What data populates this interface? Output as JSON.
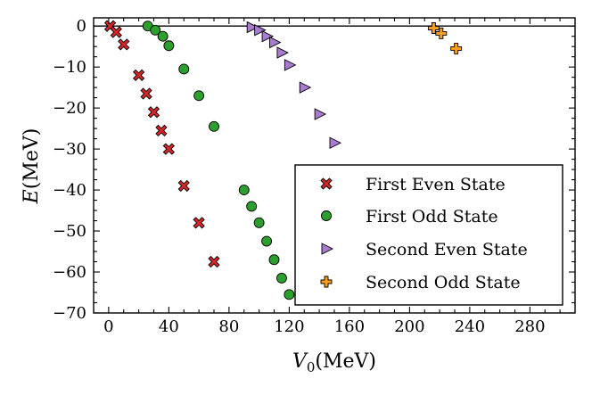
{
  "chart_data": {
    "type": "scatter",
    "title": "",
    "xlabel": "V₀(MeV)",
    "ylabel": "E(MeV)",
    "xlim": [
      -10,
      310
    ],
    "ylim": [
      -70,
      2
    ],
    "x_ticks": [
      0,
      40,
      80,
      120,
      160,
      200,
      240,
      280
    ],
    "y_ticks": [
      0,
      -10,
      -20,
      -30,
      -40,
      -50,
      -60,
      -70
    ],
    "x_tick_labels": [
      "0",
      "40",
      "80",
      "120",
      "160",
      "200",
      "240",
      "280"
    ],
    "y_tick_labels": [
      "0",
      "−10",
      "−20",
      "−30",
      "−40",
      "−50",
      "−60",
      "−70"
    ],
    "zero_line": true,
    "legend_position": "center-right",
    "series": [
      {
        "name": "First Even State",
        "marker": "x",
        "color": "#d62728",
        "points": [
          [
            1,
            0
          ],
          [
            5,
            -1.5
          ],
          [
            10,
            -4.5
          ],
          [
            20,
            -12
          ],
          [
            25,
            -16.5
          ],
          [
            30,
            -21
          ],
          [
            35,
            -25.5
          ],
          [
            40,
            -30
          ],
          [
            50,
            -39
          ],
          [
            60,
            -48
          ],
          [
            70,
            -57.5
          ]
        ]
      },
      {
        "name": "First Odd State",
        "marker": "circle",
        "color": "#2ca02c",
        "points": [
          [
            26,
            0
          ],
          [
            31,
            -1
          ],
          [
            36,
            -2.5
          ],
          [
            40,
            -4.8
          ],
          [
            50,
            -10.5
          ],
          [
            60,
            -17
          ],
          [
            70,
            -24.5
          ],
          [
            90,
            -40
          ],
          [
            95,
            -44
          ],
          [
            100,
            -48
          ],
          [
            105,
            -52.5
          ],
          [
            110,
            -57
          ],
          [
            115,
            -61.5
          ],
          [
            120,
            -65.5
          ]
        ]
      },
      {
        "name": "Second Even State",
        "marker": "triangle-right",
        "color": "#a97bd1",
        "points": [
          [
            95,
            -0.3
          ],
          [
            100,
            -1
          ],
          [
            105,
            -2.5
          ],
          [
            110,
            -4
          ],
          [
            115,
            -6.5
          ],
          [
            120,
            -9.5
          ],
          [
            130,
            -15
          ],
          [
            140,
            -21.5
          ],
          [
            150,
            -28.5
          ]
        ]
      },
      {
        "name": "Second Odd State",
        "marker": "plus",
        "color": "#ff9d1c",
        "points": [
          [
            216,
            -0.5
          ],
          [
            221,
            -1.8
          ],
          [
            231,
            -5.5
          ]
        ]
      }
    ]
  }
}
